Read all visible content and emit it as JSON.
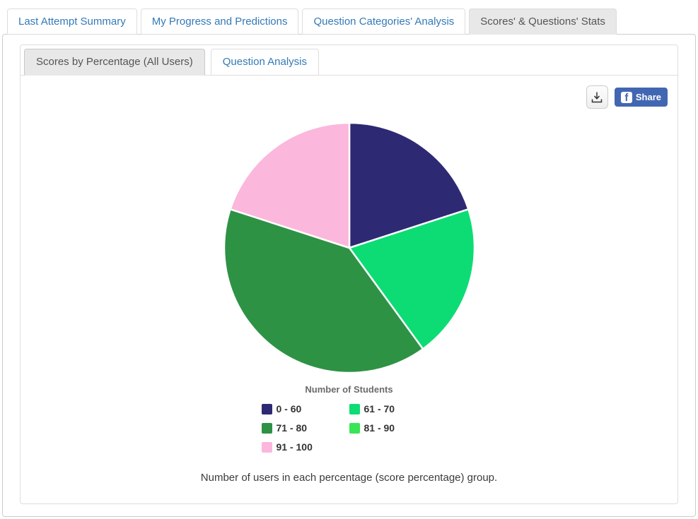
{
  "top_tabs": [
    {
      "label": "Last Attempt Summary",
      "active": false
    },
    {
      "label": "My Progress and Predictions",
      "active": false
    },
    {
      "label": "Question Categories' Analysis",
      "active": false
    },
    {
      "label": "Scores' & Questions' Stats",
      "active": true
    }
  ],
  "sub_tabs": [
    {
      "label": "Scores by Percentage (All Users)",
      "active": true
    },
    {
      "label": "Question Analysis",
      "active": false
    }
  ],
  "toolbar": {
    "download_icon": "download-icon",
    "facebook_logo_letter": "f",
    "share_label": "Share",
    "facebook_blue": "#4267b2"
  },
  "chart_data": {
    "type": "pie",
    "title": "Number of Students",
    "caption": "Number of users in each percentage (score percentage) group.",
    "categories": [
      "0 - 60",
      "61 - 70",
      "71 - 80",
      "81 - 90",
      "91 - 100"
    ],
    "values_percent": [
      20,
      20,
      40,
      0,
      20
    ],
    "colors": [
      "#2e2973",
      "#0ddc74",
      "#2e9245",
      "#38e556",
      "#fbb7dc"
    ],
    "start_angle_deg": 0,
    "direction": "clockwise",
    "slice_gap_color": "#ffffff",
    "legend_position": "bottom",
    "legend_columns": 2
  }
}
